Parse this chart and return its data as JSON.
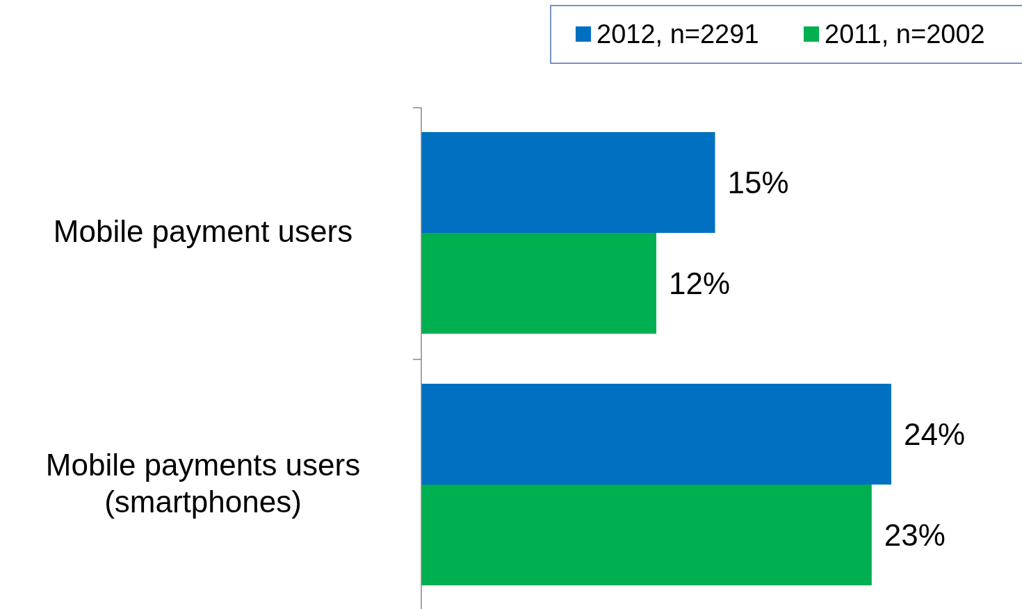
{
  "chart_data": {
    "type": "bar",
    "orientation": "horizontal",
    "categories": [
      "Mobile payment users",
      "Mobile payments users\n(smartphones)"
    ],
    "series": [
      {
        "name": "2012, n=2291",
        "color": "#0070c0",
        "values": [
          15,
          24
        ],
        "value_labels": [
          "15%",
          "24%"
        ]
      },
      {
        "name": "2011, n=2002",
        "color": "#00b050",
        "values": [
          12,
          23
        ],
        "value_labels": [
          "12%",
          "23%"
        ]
      }
    ],
    "tick_labels": "y",
    "legend": "top right"
  }
}
